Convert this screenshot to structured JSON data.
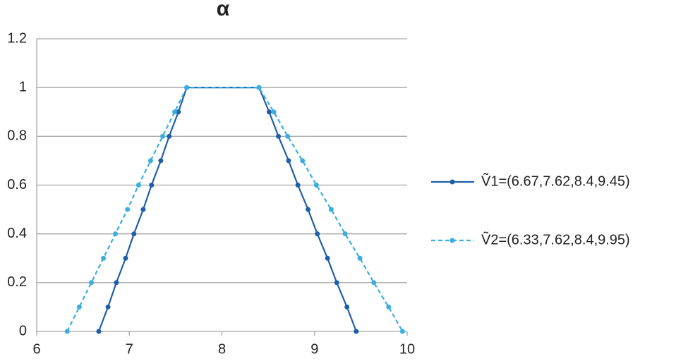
{
  "chart_data": {
    "type": "line",
    "title": "α",
    "xlim": [
      6,
      10
    ],
    "xticks": [
      6,
      7,
      8,
      9,
      10
    ],
    "ylim": [
      0,
      1.2
    ],
    "yticks": [
      0,
      0.2,
      0.4,
      0.6,
      0.8,
      1,
      1.2
    ],
    "grid": true,
    "legend": "right",
    "series": [
      {
        "name": "Ṽ1=(6.67,7.62,8.4,9.45)",
        "color": "#1f5fa8",
        "dash": "solid",
        "x": [
          6.67,
          6.77,
          6.86,
          6.96,
          7.05,
          7.15,
          7.24,
          7.34,
          7.43,
          7.53,
          7.62,
          8.4,
          8.51,
          8.61,
          8.72,
          8.82,
          8.93,
          9.03,
          9.14,
          9.24,
          9.35,
          9.45
        ],
        "values": [
          0,
          0.1,
          0.2,
          0.3,
          0.4,
          0.5,
          0.6,
          0.7,
          0.8,
          0.9,
          1,
          1,
          0.9,
          0.8,
          0.7,
          0.6,
          0.5,
          0.4,
          0.3,
          0.2,
          0.1,
          0
        ]
      },
      {
        "name": "Ṽ2=(6.33,7.62,8.4,9.95)",
        "color": "#3aaee0",
        "dash": "dashed",
        "x": [
          6.33,
          6.46,
          6.59,
          6.72,
          6.85,
          6.98,
          7.1,
          7.23,
          7.36,
          7.49,
          7.62,
          8.4,
          8.56,
          8.71,
          8.87,
          9.02,
          9.18,
          9.33,
          9.49,
          9.64,
          9.8,
          9.95
        ],
        "values": [
          0,
          0.1,
          0.2,
          0.3,
          0.4,
          0.5,
          0.6,
          0.7,
          0.8,
          0.9,
          1,
          1,
          0.9,
          0.8,
          0.7,
          0.6,
          0.5,
          0.4,
          0.3,
          0.2,
          0.1,
          0
        ]
      }
    ]
  }
}
